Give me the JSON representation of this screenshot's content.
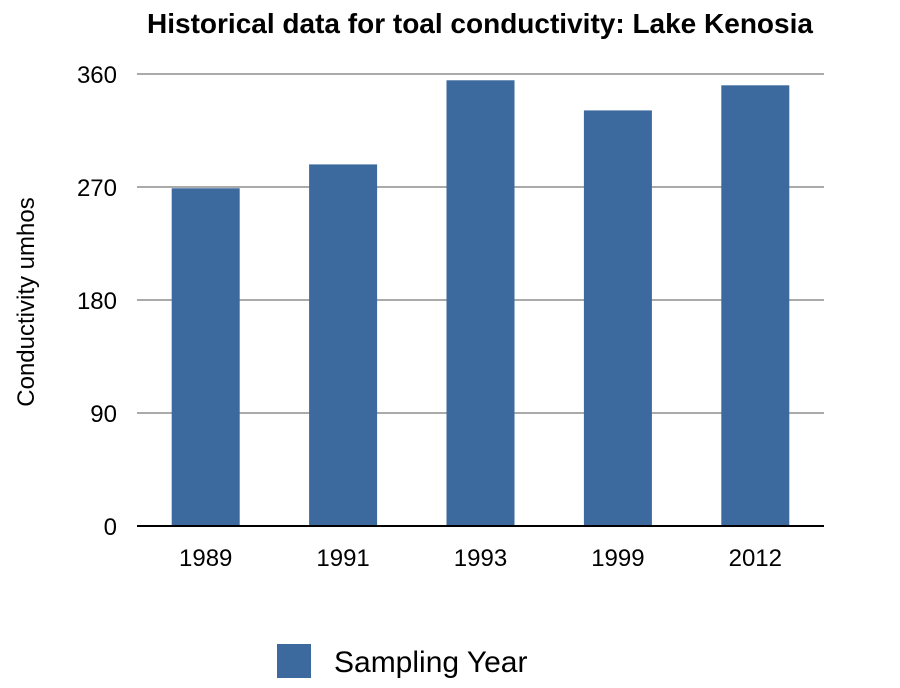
{
  "chart_data": {
    "type": "bar",
    "title": "Historical data for toal conductivity: Lake Kenosia",
    "xlabel": "",
    "ylabel": "Conductivity umhos",
    "categories": [
      "1989",
      "1991",
      "1993",
      "1999",
      "2012"
    ],
    "series": [
      {
        "name": "Sampling Year",
        "values": [
          269,
          288,
          355,
          331,
          351
        ],
        "color": "#3c6a9e"
      }
    ],
    "ylim": [
      0,
      360
    ],
    "yticks": [
      "0",
      "90",
      "180",
      "270",
      "360"
    ],
    "grid": true,
    "legend_position": "bottom-center"
  }
}
